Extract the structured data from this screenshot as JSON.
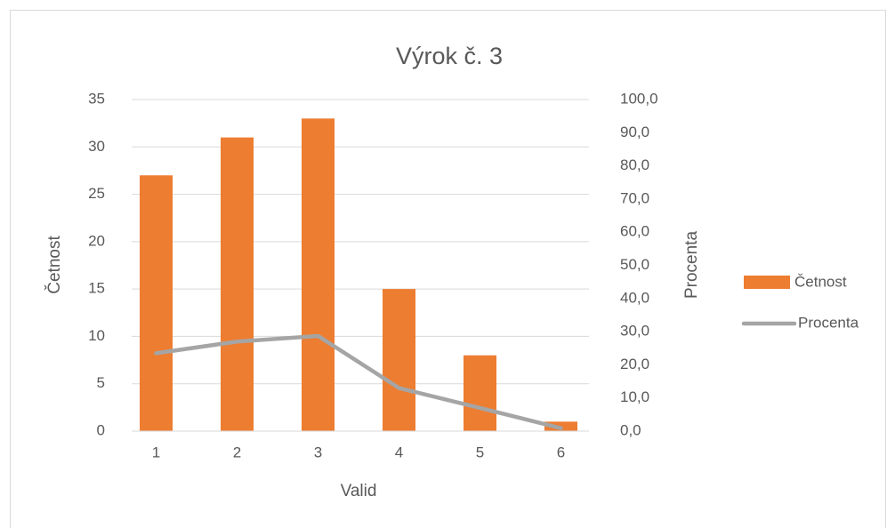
{
  "chart_data": {
    "type": "combo",
    "title": "Výrok č. 3",
    "x_label": "Valid",
    "y_label": "Četnost",
    "y2_label": "Procenta",
    "categories": [
      "1",
      "2",
      "3",
      "4",
      "5",
      "6"
    ],
    "series": [
      {
        "name": "Četnost",
        "type": "bar",
        "color": "#ed7d31",
        "values": [
          27,
          31,
          33,
          15,
          8,
          1
        ]
      },
      {
        "name": "Procenta",
        "type": "line",
        "axis": "y2",
        "color": "#a5a5a5",
        "values": [
          23.5,
          27.0,
          28.7,
          13.0,
          7.0,
          0.9
        ]
      }
    ],
    "ylim": [
      0,
      35
    ],
    "yticks": [
      0,
      5,
      10,
      15,
      20,
      25,
      30,
      35
    ],
    "y2lim": [
      0,
      100
    ],
    "y2ticks": [
      {
        "value": 0,
        "label": "0,0"
      },
      {
        "value": 10,
        "label": "10,0"
      },
      {
        "value": 20,
        "label": "20,0"
      },
      {
        "value": 30,
        "label": "30,0"
      },
      {
        "value": 40,
        "label": "40,0"
      },
      {
        "value": 50,
        "label": "50,0"
      },
      {
        "value": 60,
        "label": "60,0"
      },
      {
        "value": 70,
        "label": "70,0"
      },
      {
        "value": 80,
        "label": "80,0"
      },
      {
        "value": 90,
        "label": "90,0"
      },
      {
        "value": 100,
        "label": "100,0"
      }
    ],
    "grid": true,
    "legend": "right"
  }
}
